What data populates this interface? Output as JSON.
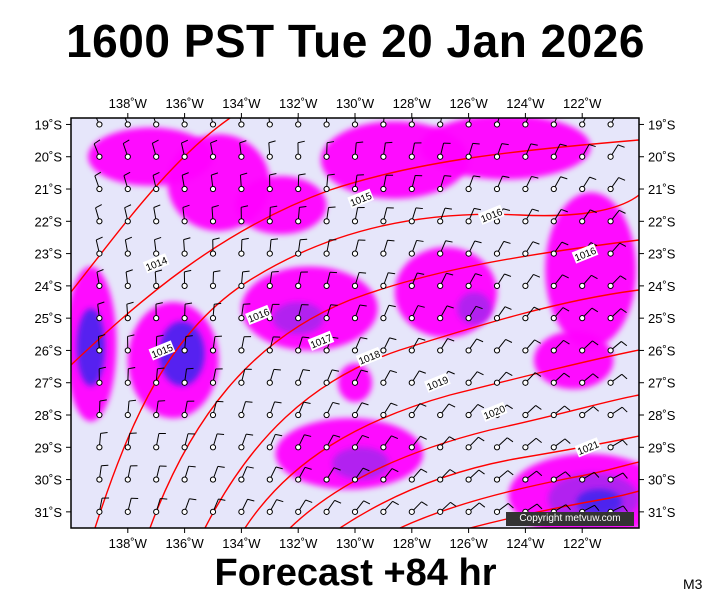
{
  "title": "1600 PST Tue 20 Jan 2026",
  "footer": "Forecast +84 hr",
  "model_code": "M3",
  "copyright": "Copyright metvuw.com",
  "colors": {
    "background": "#e6e6fa",
    "rain_light": "#ff00ff",
    "rain_medium": "#aa22ee",
    "rain_heavy": "#4422ee",
    "rain_core": "#1111dd",
    "isobar": "#ff0000",
    "barb": "#000000"
  },
  "map": {
    "lon_range": [
      -140,
      -120
    ],
    "lat_range": [
      -31.5,
      -18.8
    ],
    "lon_ticks": [
      "138˚W",
      "136˚W",
      "134˚W",
      "132˚W",
      "130˚W",
      "128˚W",
      "126˚W",
      "124˚W",
      "122˚W"
    ],
    "lon_tick_values": [
      -138,
      -136,
      -134,
      -132,
      -130,
      -128,
      -126,
      -124,
      -122
    ],
    "lat_ticks": [
      "19˚S",
      "20˚S",
      "21˚S",
      "22˚S",
      "23˚S",
      "24˚S",
      "25˚S",
      "26˚S",
      "27˚S",
      "28˚S",
      "29˚S",
      "30˚S",
      "31˚S"
    ],
    "lat_tick_values": [
      -19,
      -20,
      -21,
      -22,
      -23,
      -24,
      -25,
      -26,
      -27,
      -28,
      -29,
      -30,
      -31
    ]
  },
  "isobars": [
    {
      "label": "1015",
      "label_lon": -129.8,
      "label_lat": -21.3
    },
    {
      "label": "1016",
      "label_lon": -125.2,
      "label_lat": -21.8
    },
    {
      "label": "1014",
      "label_lon": -137.0,
      "label_lat": -23.3
    },
    {
      "label": "1016",
      "label_lon": -133.4,
      "label_lat": -24.9
    },
    {
      "label": "1016",
      "label_lon": -121.9,
      "label_lat": -23.0
    },
    {
      "label": "1017",
      "label_lon": -131.2,
      "label_lat": -25.7
    },
    {
      "label": "1015",
      "label_lon": -136.8,
      "label_lat": -26.0
    },
    {
      "label": "1018",
      "label_lon": -129.5,
      "label_lat": -26.2
    },
    {
      "label": "1019",
      "label_lon": -127.1,
      "label_lat": -27.0
    },
    {
      "label": "1020",
      "label_lon": -125.1,
      "label_lat": -27.9
    },
    {
      "label": "1021",
      "label_lon": -121.8,
      "label_lat": -29.0
    }
  ],
  "precipitation_areas": [
    {
      "lon": -137.2,
      "lat": -20.0,
      "rx": 2.2,
      "ry": 0.9,
      "level": 1
    },
    {
      "lon": -139.3,
      "lat": -25.8,
      "rx": 0.9,
      "ry": 2.4,
      "level": 1
    },
    {
      "lon": -139.3,
      "lat": -25.9,
      "rx": 0.5,
      "ry": 1.2,
      "level": 3
    },
    {
      "lon": -136.4,
      "lat": -26.3,
      "rx": 1.6,
      "ry": 1.8,
      "level": 1
    },
    {
      "lon": -136.1,
      "lat": -26.1,
      "rx": 0.8,
      "ry": 1.0,
      "level": 3
    },
    {
      "lon": -134.8,
      "lat": -20.8,
      "rx": 1.8,
      "ry": 1.5,
      "level": 1
    },
    {
      "lon": -132.6,
      "lat": -21.5,
      "rx": 1.6,
      "ry": 0.9,
      "level": 1
    },
    {
      "lon": -131.6,
      "lat": -24.7,
      "rx": 2.4,
      "ry": 1.3,
      "level": 1
    },
    {
      "lon": -132.0,
      "lat": -25.0,
      "rx": 0.9,
      "ry": 0.5,
      "level": 2
    },
    {
      "lon": -128.6,
      "lat": -20.1,
      "rx": 2.6,
      "ry": 1.2,
      "level": 1
    },
    {
      "lon": -124.7,
      "lat": -19.7,
      "rx": 3.0,
      "ry": 1.0,
      "level": 1
    },
    {
      "lon": -126.8,
      "lat": -24.2,
      "rx": 1.8,
      "ry": 1.4,
      "level": 1
    },
    {
      "lon": -125.8,
      "lat": -24.7,
      "rx": 0.6,
      "ry": 0.5,
      "level": 2
    },
    {
      "lon": -121.7,
      "lat": -23.5,
      "rx": 1.6,
      "ry": 2.4,
      "level": 1
    },
    {
      "lon": -122.3,
      "lat": -26.3,
      "rx": 1.4,
      "ry": 0.9,
      "level": 1
    },
    {
      "lon": -130.2,
      "lat": -29.2,
      "rx": 2.6,
      "ry": 1.1,
      "level": 1
    },
    {
      "lon": -129.8,
      "lat": -29.5,
      "rx": 1.0,
      "ry": 0.5,
      "level": 2
    },
    {
      "lon": -121.8,
      "lat": -30.5,
      "rx": 2.8,
      "ry": 1.3,
      "level": 1
    },
    {
      "lon": -121.6,
      "lat": -30.6,
      "rx": 1.6,
      "ry": 0.8,
      "level": 2
    },
    {
      "lon": -121.4,
      "lat": -30.7,
      "rx": 0.8,
      "ry": 0.4,
      "level": 3
    },
    {
      "lon": -130.0,
      "lat": -27.0,
      "rx": 0.6,
      "ry": 0.6,
      "level": 1
    }
  ]
}
